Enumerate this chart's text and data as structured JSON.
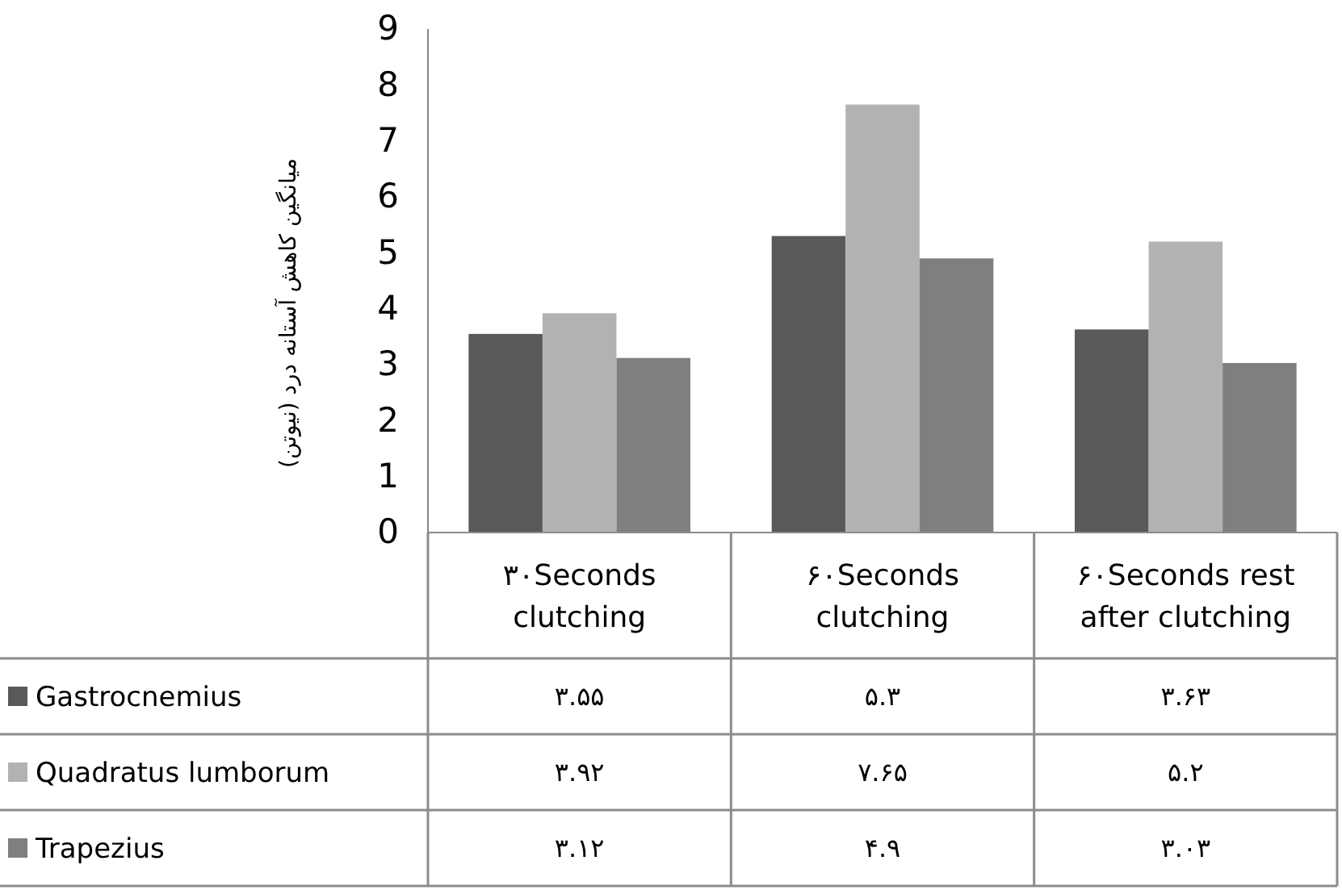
{
  "chart_data": {
    "type": "bar",
    "ylabel": "میانگین کاهش آستانه درد (نیوتن)",
    "categories": [
      "۳۰Seconds clutching",
      "۶۰Seconds clutching",
      "۶۰Seconds rest after clutching"
    ],
    "series": [
      {
        "name": "Gastrocnemius",
        "color": "#595959",
        "values": [
          3.55,
          5.3,
          3.63
        ],
        "value_labels": [
          "۳.۵۵",
          "۵.۳",
          "۳.۶۳"
        ]
      },
      {
        "name": "Quadratus lumborum",
        "color": "#b2b2b2",
        "values": [
          3.92,
          7.65,
          5.2
        ],
        "value_labels": [
          "۳.۹۲",
          "۷.۶۵",
          "۵.۲"
        ]
      },
      {
        "name": "Trapezius",
        "color": "#7f7f7f",
        "values": [
          3.12,
          4.9,
          3.03
        ],
        "value_labels": [
          "۳.۱۲",
          "۴.۹",
          "۳.۰۳"
        ]
      }
    ],
    "ylim": [
      0,
      9
    ],
    "yticks": [
      0,
      1,
      2,
      3,
      4,
      5,
      6,
      7,
      8,
      9
    ],
    "grid": false,
    "legend": "bottom"
  }
}
